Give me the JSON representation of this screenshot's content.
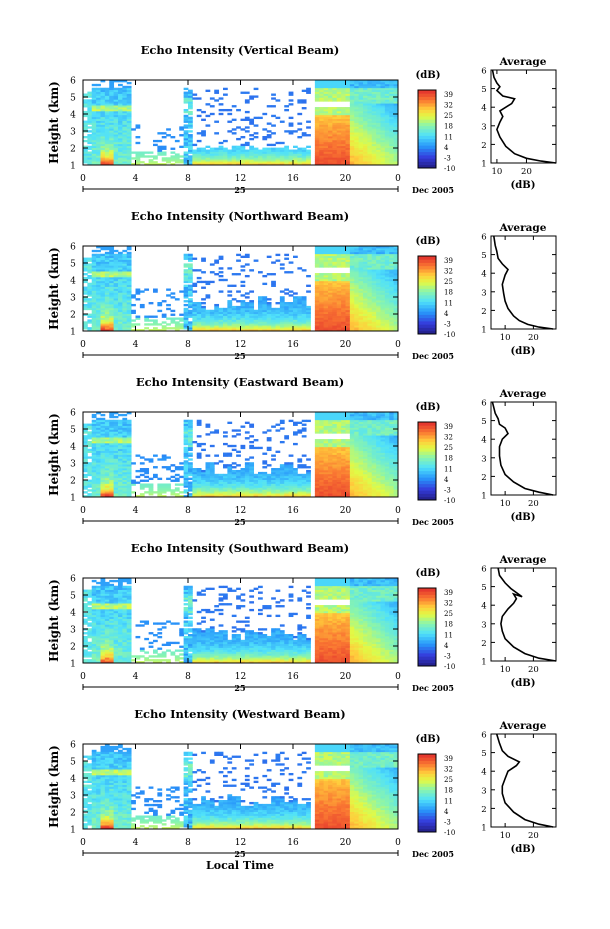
{
  "figure": {
    "date_label": "Dec 2005",
    "day_label": "25",
    "xlabel": "Local Time",
    "ylabel": "Height (km)",
    "colorbar_unit": "(dB)",
    "colorbar_ticks": [
      "39",
      "32",
      "25",
      "18",
      "11",
      "4",
      "-3",
      "-10"
    ],
    "profile_title": "Average",
    "profile_xlabel": "(dB)"
  },
  "chart_data": [
    {
      "type": "heatmap",
      "title": "Echo Intensity (Vertical Beam)",
      "xlabel": "",
      "ylabel": "Height (km)",
      "x_ticks": [
        "0",
        "4",
        "8",
        "12",
        "16",
        "20",
        "0"
      ],
      "x_range_hours": [
        0,
        24
      ],
      "y_ticks": [
        "1",
        "2",
        "3",
        "4",
        "5",
        "6"
      ],
      "ylim_km": [
        1,
        6
      ],
      "z_unit": "dB",
      "z_range": [
        -10,
        39
      ]
    },
    {
      "type": "heatmap",
      "title": "Echo Intensity (Northward Beam)",
      "xlabel": "",
      "ylabel": "Height (km)",
      "x_ticks": [
        "0",
        "4",
        "8",
        "12",
        "16",
        "20",
        "0"
      ],
      "x_range_hours": [
        0,
        24
      ],
      "y_ticks": [
        "1",
        "2",
        "3",
        "4",
        "5",
        "6"
      ],
      "ylim_km": [
        1,
        6
      ],
      "z_unit": "dB",
      "z_range": [
        -10,
        39
      ]
    },
    {
      "type": "heatmap",
      "title": "Echo Intensity (Eastward Beam)",
      "xlabel": "",
      "ylabel": "Height (km)",
      "x_ticks": [
        "0",
        "4",
        "8",
        "12",
        "16",
        "20",
        "0"
      ],
      "x_range_hours": [
        0,
        24
      ],
      "y_ticks": [
        "1",
        "2",
        "3",
        "4",
        "5",
        "6"
      ],
      "ylim_km": [
        1,
        6
      ],
      "z_unit": "dB",
      "z_range": [
        -10,
        39
      ]
    },
    {
      "type": "heatmap",
      "title": "Echo Intensity (Southward Beam)",
      "xlabel": "",
      "ylabel": "Height (km)",
      "x_ticks": [
        "0",
        "4",
        "8",
        "12",
        "16",
        "20",
        "0"
      ],
      "x_range_hours": [
        0,
        24
      ],
      "y_ticks": [
        "1",
        "2",
        "3",
        "4",
        "5",
        "6"
      ],
      "ylim_km": [
        1,
        6
      ],
      "z_unit": "dB",
      "z_range": [
        -10,
        39
      ]
    },
    {
      "type": "heatmap",
      "title": "Echo Intensity (Westward Beam)",
      "xlabel": "Local Time",
      "ylabel": "Height (km)",
      "x_ticks": [
        "0",
        "4",
        "8",
        "12",
        "16",
        "20",
        "0"
      ],
      "x_range_hours": [
        0,
        24
      ],
      "y_ticks": [
        "1",
        "2",
        "3",
        "4",
        "5",
        "6"
      ],
      "ylim_km": [
        1,
        6
      ],
      "z_unit": "dB",
      "z_range": [
        -10,
        39
      ]
    },
    {
      "type": "line",
      "title": "Average",
      "xlabel": "(dB)",
      "x_ticks": [
        "10",
        "20"
      ],
      "xlim": [
        8,
        30
      ],
      "y_ticks": [
        "1",
        "2",
        "3",
        "4",
        "5",
        "6"
      ],
      "ylim": [
        1,
        6
      ],
      "points": [
        [
          30,
          1.0
        ],
        [
          25,
          1.1
        ],
        [
          20,
          1.25
        ],
        [
          16,
          1.5
        ],
        [
          13,
          1.9
        ],
        [
          11,
          2.4
        ],
        [
          10,
          2.8
        ],
        [
          11,
          3.2
        ],
        [
          12,
          3.5
        ],
        [
          11,
          3.8
        ],
        [
          15,
          4.2
        ],
        [
          16,
          4.45
        ],
        [
          12,
          4.6
        ],
        [
          10,
          4.9
        ],
        [
          11,
          5.1
        ],
        [
          10,
          5.3
        ],
        [
          9,
          5.6
        ],
        [
          8.5,
          6.0
        ]
      ]
    },
    {
      "type": "line",
      "title": "Average",
      "xlabel": "(dB)",
      "x_ticks": [
        "10",
        "20"
      ],
      "xlim": [
        5,
        28
      ],
      "y_ticks": [
        "1",
        "2",
        "3",
        "4",
        "5",
        "6"
      ],
      "ylim": [
        1,
        6
      ],
      "points": [
        [
          27,
          1.0
        ],
        [
          22,
          1.1
        ],
        [
          18,
          1.25
        ],
        [
          15,
          1.45
        ],
        [
          13,
          1.7
        ],
        [
          11,
          2.1
        ],
        [
          10,
          2.5
        ],
        [
          9.5,
          2.9
        ],
        [
          9,
          3.4
        ],
        [
          10,
          3.9
        ],
        [
          11,
          4.2
        ],
        [
          9,
          4.5
        ],
        [
          7.5,
          4.8
        ],
        [
          7,
          5.2
        ],
        [
          6.5,
          5.5
        ],
        [
          6,
          6.0
        ]
      ]
    },
    {
      "type": "line",
      "title": "Average",
      "xlabel": "(dB)",
      "x_ticks": [
        "10",
        "20"
      ],
      "xlim": [
        5,
        28
      ],
      "y_ticks": [
        "1",
        "2",
        "3",
        "4",
        "5",
        "6"
      ],
      "ylim": [
        1,
        6
      ],
      "points": [
        [
          27,
          1.0
        ],
        [
          22,
          1.15
        ],
        [
          17,
          1.35
        ],
        [
          13,
          1.7
        ],
        [
          10,
          2.1
        ],
        [
          8.5,
          2.6
        ],
        [
          8,
          3.1
        ],
        [
          8,
          3.6
        ],
        [
          9,
          4.0
        ],
        [
          11,
          4.3
        ],
        [
          10,
          4.6
        ],
        [
          8,
          4.8
        ],
        [
          7.5,
          5.1
        ],
        [
          6.5,
          5.4
        ],
        [
          6,
          5.7
        ],
        [
          5.5,
          6.0
        ]
      ]
    },
    {
      "type": "line",
      "title": "Average",
      "xlabel": "(dB)",
      "x_ticks": [
        "10",
        "20"
      ],
      "xlim": [
        5,
        28
      ],
      "y_ticks": [
        "1",
        "2",
        "3",
        "4",
        "5",
        "6"
      ],
      "ylim": [
        1,
        6
      ],
      "points": [
        [
          28,
          1.0
        ],
        [
          22,
          1.15
        ],
        [
          17,
          1.4
        ],
        [
          13,
          1.75
        ],
        [
          10,
          2.2
        ],
        [
          9,
          2.6
        ],
        [
          8.5,
          3.0
        ],
        [
          9,
          3.4
        ],
        [
          11,
          3.8
        ],
        [
          13,
          4.1
        ],
        [
          14,
          4.35
        ],
        [
          13,
          4.6
        ],
        [
          16,
          4.45
        ],
        [
          12,
          4.9
        ],
        [
          10,
          5.2
        ],
        [
          8,
          5.6
        ],
        [
          7.5,
          6.0
        ]
      ]
    },
    {
      "type": "line",
      "title": "Average",
      "xlabel": "(dB)",
      "x_ticks": [
        "10",
        "20"
      ],
      "xlim": [
        5,
        28
      ],
      "y_ticks": [
        "1",
        "2",
        "3",
        "4",
        "5",
        "6"
      ],
      "ylim": [
        1,
        6
      ],
      "points": [
        [
          27,
          1.0
        ],
        [
          22,
          1.15
        ],
        [
          17,
          1.4
        ],
        [
          13,
          1.8
        ],
        [
          10,
          2.3
        ],
        [
          9,
          2.8
        ],
        [
          9,
          3.2
        ],
        [
          10,
          3.6
        ],
        [
          11,
          4.0
        ],
        [
          14,
          4.3
        ],
        [
          15,
          4.5
        ],
        [
          11,
          4.8
        ],
        [
          9,
          5.1
        ],
        [
          8,
          5.5
        ],
        [
          7,
          6.0
        ]
      ]
    }
  ]
}
